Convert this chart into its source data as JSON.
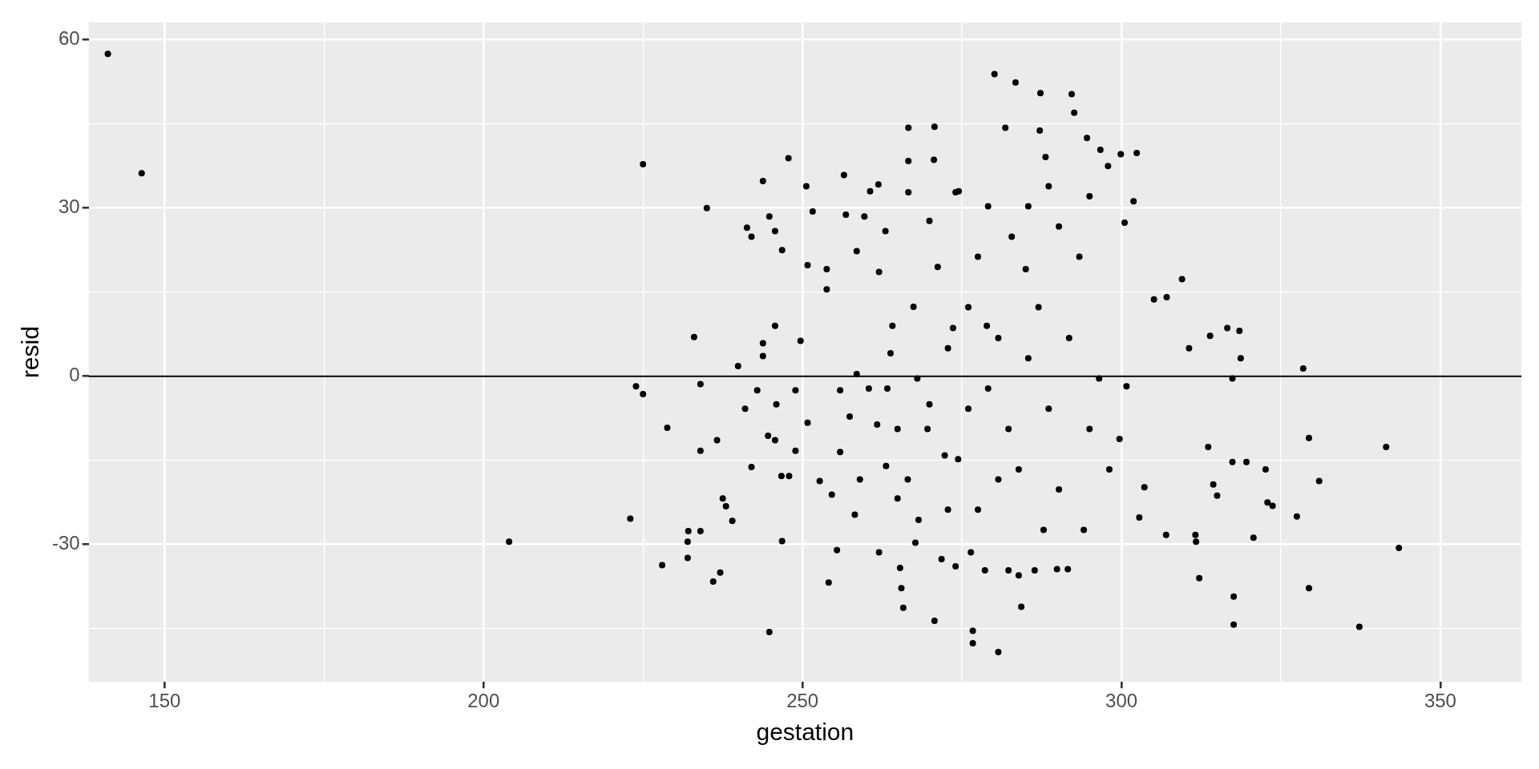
{
  "chart_data": {
    "type": "scatter",
    "xlabel": "gestation",
    "ylabel": "resid",
    "color": "#000000",
    "marker": "circle",
    "grid": true,
    "xlim": [
      138.1,
      362.7
    ],
    "ylim": [
      -54.5,
      63.1
    ],
    "xticks": [
      150,
      {
        "value": 175,
        "label": null
      },
      200,
      {
        "value": 225,
        "label": null
      },
      250,
      {
        "value": 275,
        "label": null
      },
      300,
      {
        "value": 325,
        "label": null
      },
      350
    ],
    "yticks": [
      {
        "value": -45,
        "label": null
      },
      -30,
      {
        "value": -15,
        "label": null
      },
      0,
      {
        "value": 15,
        "label": null
      },
      30,
      {
        "value": 45,
        "label": null
      },
      60
    ],
    "ref_lines": [
      {
        "axis": "y",
        "value": 0,
        "color": "#000000"
      }
    ],
    "x": [
      141.1,
      146.4,
      204,
      225,
      223.9,
      225,
      223,
      228.8,
      228,
      232,
      232,
      232.1,
      233,
      234,
      234,
      234,
      235,
      236,
      237.1,
      236.6,
      237.5,
      238,
      239,
      239.9,
      241,
      241.3,
      242,
      242,
      242.9,
      243.8,
      243.8,
      243.8,
      244.6,
      244.8,
      245.7,
      244.8,
      245.7,
      245.7,
      245.9,
      246.7,
      246.8,
      247.8,
      246.8,
      247.9,
      248.9,
      248.9,
      249.7,
      250.6,
      250.8,
      250.8,
      251.6,
      252.7,
      253.8,
      253.8,
      254.1,
      254.6,
      255.4,
      255.9,
      255.9,
      256.5,
      256.8,
      257.4,
      258.2,
      258.5,
      258.5,
      259,
      259.7,
      260.4,
      260.6,
      261.7,
      261.9,
      262,
      262,
      263,
      263.1,
      263.8,
      264.1,
      264.9,
      265.3,
      265.5,
      265.8,
      266.6,
      266.6,
      266.6,
      267.4,
      267.7,
      268.2,
      269.9,
      270.6,
      270.7,
      270.7,
      269.9,
      271.8,
      272.3,
      272.8,
      274,
      274,
      274.5,
      276.4,
      276.7,
      276.7,
      278.6,
      278.9,
      280.1,
      280.7,
      281.8,
      282.3,
      282.8,
      283.4,
      283.9,
      284.3,
      285,
      286.4,
      287.2,
      287.3,
      288.1,
      289.9,
      291.6,
      292.2,
      292.6,
      294.6,
      296.7,
      297.9,
      299.9,
      302.4,
      301.9,
      300.5,
      300.8,
      302.8,
      303.6,
      305.1,
      307.1,
      307,
      309.5,
      310.6,
      311.6,
      311.7,
      312.2,
      313.6,
      313.9,
      314.4,
      315,
      316.6,
      317.4,
      317.4,
      317.6,
      317.6,
      318.5,
      318.7,
      319.6,
      320.7,
      322.6,
      322.9,
      323.7,
      327.5,
      328.5,
      329.4,
      329.4,
      331,
      337.3,
      341.5,
      343.5,
      276,
      277.5,
      279.1,
      282.3,
      283.9,
      285.4,
      287,
      288.6,
      290.2,
      291.8,
      293.4,
      295,
      296.5,
      298.1,
      276,
      274.4,
      272.8,
      271.2,
      269.6,
      268,
      277.5,
      280.7,
      280.7,
      279.1,
      285.4,
      290.2,
      288.6,
      273.6,
      287.8,
      294.1,
      295,
      299.7,
      266.5,
      264.9,
      263.3
    ],
    "values": [
      57.5,
      36.2,
      -29.5,
      37.8,
      -1.8,
      -3.2,
      -25.4,
      -9.2,
      -33.7,
      -29.5,
      -32.4,
      -27.6,
      7,
      -1.4,
      -13.3,
      -27.6,
      30,
      -36.6,
      -35,
      -11.4,
      -21.8,
      -23.2,
      -25.8,
      1.8,
      -5.8,
      26.5,
      24.9,
      -16.2,
      -2.5,
      34.8,
      3.6,
      5.9,
      -10.6,
      28.5,
      25.9,
      -45.6,
      -11.4,
      9,
      -5,
      -17.8,
      22.5,
      38.9,
      -29.4,
      -17.8,
      -2.5,
      -13.3,
      6.3,
      33.9,
      19.8,
      -8.3,
      29.4,
      -18.7,
      19.1,
      15.5,
      -36.8,
      -21.1,
      -31,
      -13.5,
      -2.5,
      35.9,
      28.8,
      -7.2,
      -24.7,
      22.3,
      0.4,
      -18.4,
      28.5,
      -2.2,
      33,
      -8.6,
      34.2,
      18.6,
      -31.4,
      25.9,
      -16,
      4.1,
      9,
      -21.8,
      -34.2,
      -37.8,
      -41.3,
      44.3,
      38.4,
      32.8,
      12.4,
      -29.7,
      -25.6,
      -5,
      38.6,
      44.5,
      -43.6,
      27.7,
      -32.6,
      -14.1,
      5,
      32.8,
      -33.9,
      33,
      -31.4,
      -45.4,
      -47.6,
      -34.6,
      9,
      53.9,
      -49.2,
      44.3,
      -34.6,
      24.9,
      52.4,
      -35.5,
      -41.1,
      19.1,
      -34.6,
      43.8,
      50.5,
      39.1,
      -34.4,
      -34.4,
      50.3,
      47,
      42.5,
      40.4,
      37.5,
      39.6,
      39.8,
      31.2,
      27.4,
      -1.8,
      -25.2,
      -19.8,
      13.7,
      14.1,
      -28.3,
      17.3,
      5,
      -28.3,
      -29.5,
      -36,
      -12.6,
      7.2,
      -19.3,
      -21.3,
      8.6,
      -15.3,
      -0.4,
      -39.3,
      -44.3,
      8.1,
      3.2,
      -15.3,
      -28.8,
      -16.6,
      -22.5,
      -23.1,
      -25,
      1.4,
      -11,
      -37.8,
      -18.7,
      -44.7,
      -12.6,
      -30.6,
      12.3,
      21.3,
      30.3,
      -9.4,
      -16.6,
      3.2,
      12.3,
      -5.8,
      -20.2,
      6.8,
      21.3,
      -9.4,
      -0.4,
      -16.6,
      -5.8,
      -14.8,
      -23.8,
      19.5,
      -9.4,
      -0.4,
      -23.8,
      -18.4,
      6.8,
      -2.2,
      30.3,
      26.7,
      33.9,
      8.6,
      -27.4,
      -27.4,
      32.1,
      -11.2,
      -18.4,
      -9.4,
      -2.2
    ]
  }
}
